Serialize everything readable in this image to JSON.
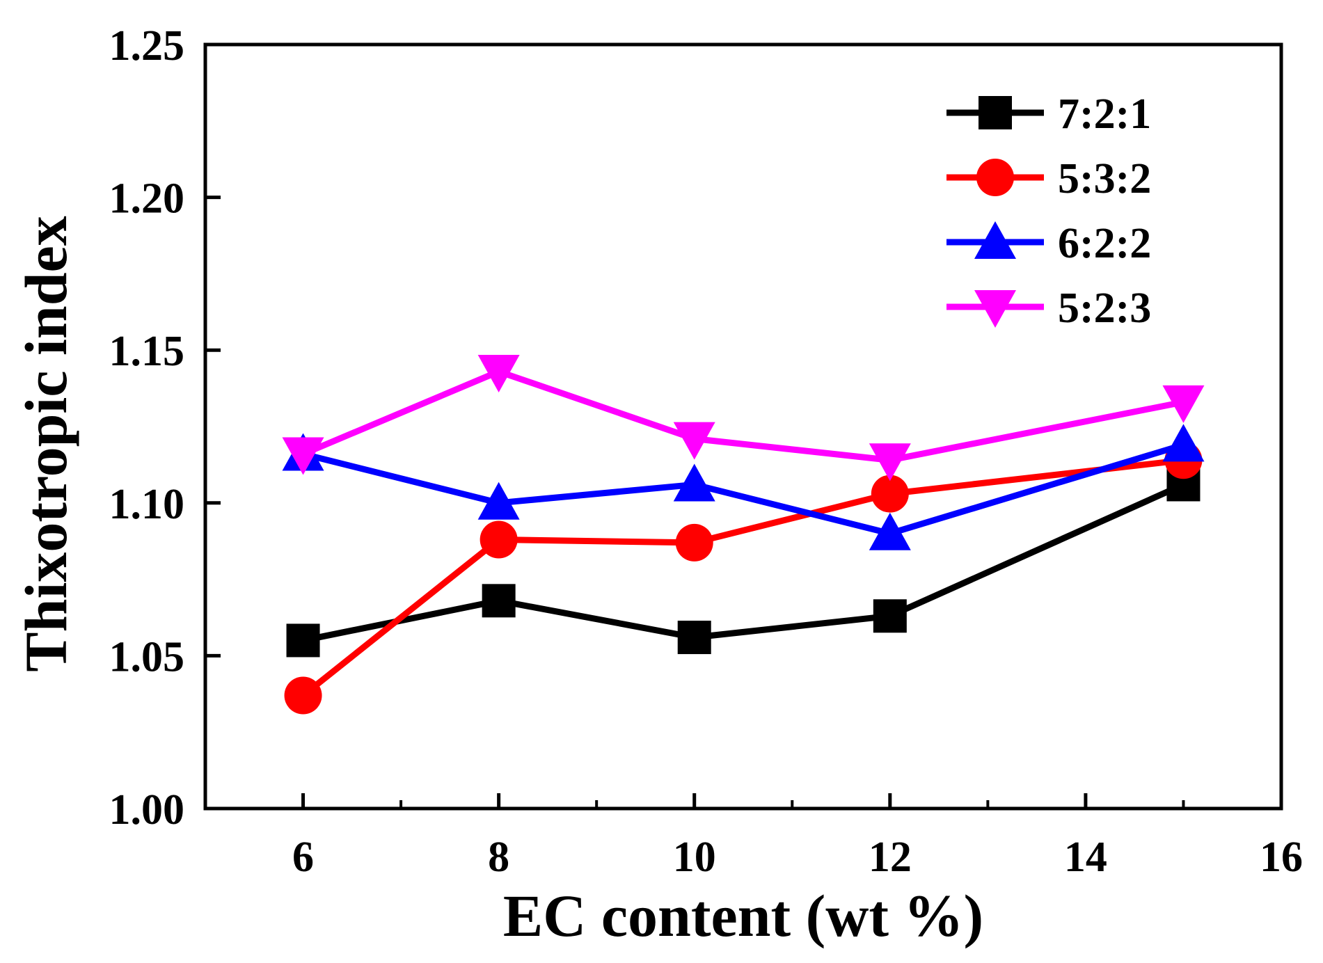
{
  "chart_data": {
    "type": "line",
    "title": "",
    "xlabel": "EC content (wt %)",
    "ylabel": "Thixotropic index",
    "xlim": [
      5,
      16
    ],
    "ylim": [
      1.0,
      1.25
    ],
    "x_ticks": [
      6,
      8,
      10,
      12,
      14,
      16
    ],
    "y_ticks": [
      1.0,
      1.05,
      1.1,
      1.15,
      1.2,
      1.25
    ],
    "x_tick_labels": [
      "6",
      "8",
      "10",
      "12",
      "14",
      "16"
    ],
    "y_tick_labels": [
      "1.00",
      "1.05",
      "1.10",
      "1.15",
      "1.20",
      "1.25"
    ],
    "grid": false,
    "legend_position": "top-right",
    "x": [
      6,
      8,
      10,
      12,
      15
    ],
    "series": [
      {
        "name": "7:2:1",
        "color": "#000000",
        "marker": "square",
        "values": [
          1.055,
          1.068,
          1.056,
          1.063,
          1.106
        ]
      },
      {
        "name": "5:3:2",
        "color": "#ff0000",
        "marker": "circle",
        "values": [
          1.037,
          1.088,
          1.087,
          1.103,
          1.114
        ]
      },
      {
        "name": "6:2:2",
        "color": "#0000ff",
        "marker": "triangle-up",
        "values": [
          1.116,
          1.1,
          1.106,
          1.09,
          1.119
        ]
      },
      {
        "name": "5:2:3",
        "color": "#ff00ff",
        "marker": "triangle-down",
        "values": [
          1.116,
          1.143,
          1.121,
          1.114,
          1.133
        ]
      }
    ]
  }
}
